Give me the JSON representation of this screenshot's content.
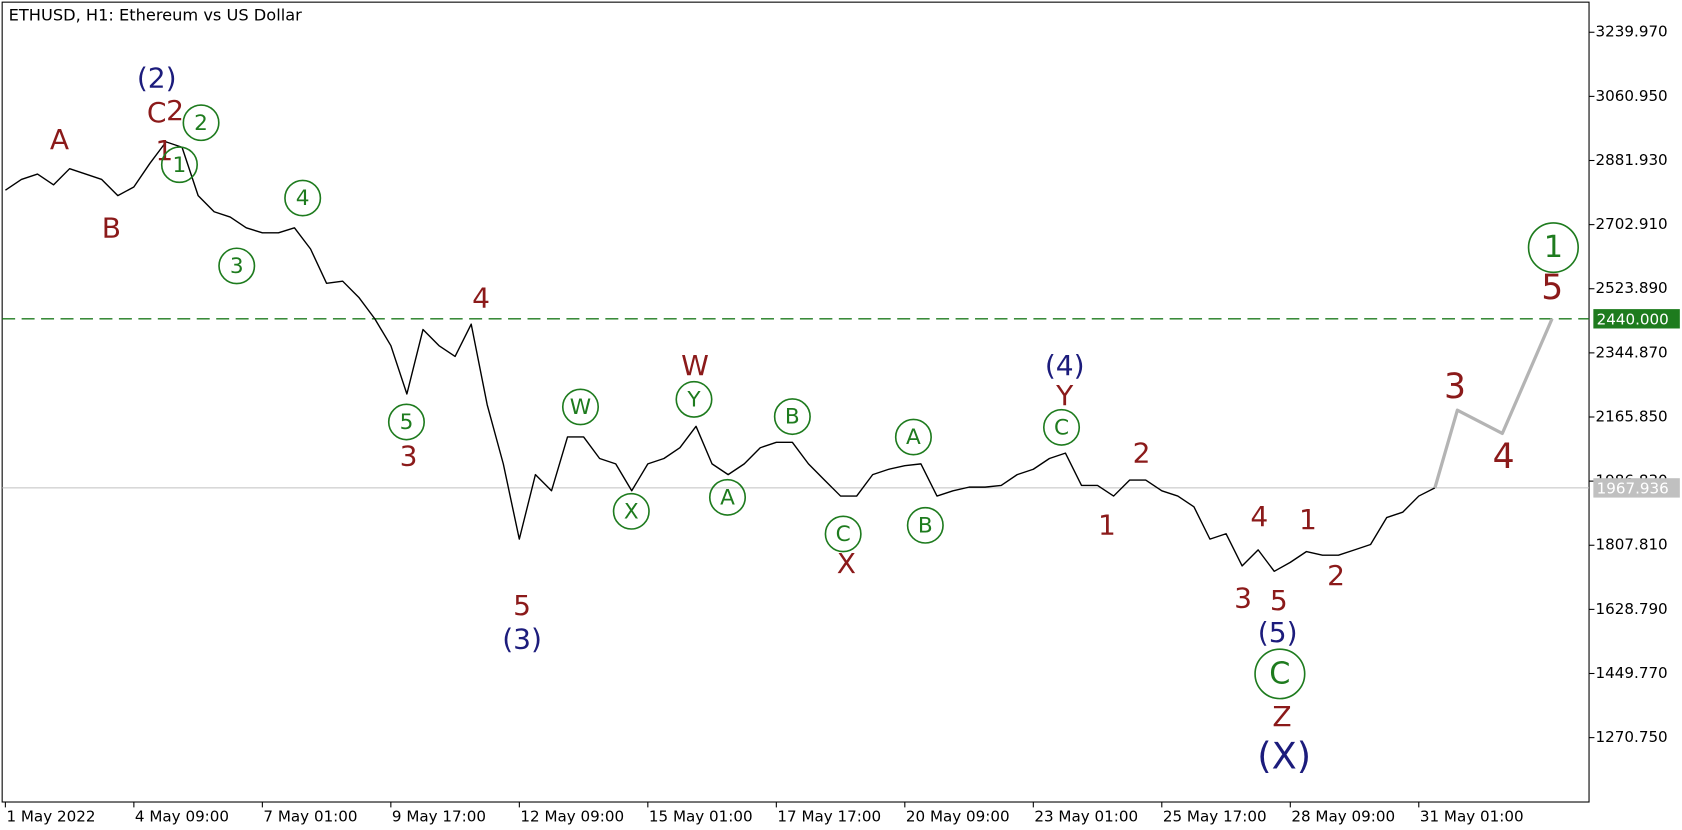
{
  "chart_data": {
    "type": "line",
    "title": "ETHUSD, H1:  Ethereum vs US Dollar",
    "series": [
      {
        "color": "#000000",
        "values": [
          2799,
          2829,
          2844,
          2814,
          2859,
          2844,
          2829,
          2784,
          2808,
          2874,
          2934,
          2919,
          2784,
          2739,
          2724,
          2694,
          2680,
          2680,
          2694,
          2635,
          2539,
          2545,
          2500,
          2440,
          2365,
          2230,
          2410,
          2365,
          2335,
          2425,
          2200,
          2035,
          1825,
          2005,
          1960,
          2110,
          2110,
          2050,
          2035,
          1960,
          2035,
          2050,
          2080,
          2140,
          2035,
          2005,
          2035,
          2080,
          2095,
          2095,
          2035,
          1990,
          1945,
          1945,
          2005,
          2020,
          2030,
          2035,
          1945,
          1960,
          1970,
          1970,
          1975,
          2005,
          2020,
          2050,
          2065,
          1975,
          1975,
          1945,
          1990,
          1990,
          1960,
          1945,
          1915,
          1825,
          1840,
          1750,
          1795,
          1735,
          1760,
          1790,
          1780,
          1780,
          1795,
          1810,
          1885,
          1900,
          1945,
          1968
        ]
      },
      {
        "color": "#b4b4b4",
        "x": [
          89,
          90.4,
          93.2,
          96.3
        ],
        "values": [
          1968,
          2185,
          2120,
          2440
        ]
      }
    ],
    "xlim": [
      -0.2,
      98.6
    ],
    "xticks": [
      {
        "value": 0,
        "label": "1 May 2022"
      },
      {
        "value": 8,
        "label": "4 May 09:00"
      },
      {
        "value": 16,
        "label": "7 May 01:00"
      },
      {
        "value": 24,
        "label": "9 May 17:00"
      },
      {
        "value": 32,
        "label": "12 May 09:00"
      },
      {
        "value": 40,
        "label": "15 May 01:00"
      },
      {
        "value": 48,
        "label": "17 May 17:00"
      },
      {
        "value": 56,
        "label": "20 May 09:00"
      },
      {
        "value": 64,
        "label": "23 May 01:00"
      },
      {
        "value": 72,
        "label": "25 May 17:00"
      },
      {
        "value": 80,
        "label": "28 May 09:00"
      },
      {
        "value": 88,
        "label": "31 May 01:00"
      }
    ],
    "ylim": [
      1091,
      3324
    ],
    "yticks": [
      {
        "value": 3239.97,
        "label": "3239.970"
      },
      {
        "value": 3060.95,
        "label": "3060.950"
      },
      {
        "value": 2881.93,
        "label": "2881.930"
      },
      {
        "value": 2702.91,
        "label": "2702.910"
      },
      {
        "value": 2523.89,
        "label": "2523.890"
      },
      {
        "value": 2344.87,
        "label": "2344.870"
      },
      {
        "value": 2165.85,
        "label": "2165.850"
      },
      {
        "value": 1986.83,
        "label": "1986.830"
      },
      {
        "value": 1807.81,
        "label": "1807.810"
      },
      {
        "value": 1628.79,
        "label": "1628.790"
      },
      {
        "value": 1449.77,
        "label": "1449.770"
      },
      {
        "value": 1270.75,
        "label": "1270.750"
      }
    ],
    "levels": [
      {
        "value": 2440,
        "label": "2440.000",
        "color": "#1e7b1e",
        "dashed": true
      },
      {
        "value": 1967.936,
        "label": "1967.936",
        "color": "#c0c0c0",
        "dashed": false
      }
    ],
    "annotations": [
      {
        "text": "A",
        "color": "#8b1a1a"
      },
      {
        "text": "B",
        "color": "#8b1a1a"
      },
      {
        "text": "(2)",
        "color": "#1c1c7c"
      },
      {
        "text": "C",
        "color": "#8b1a1a"
      },
      {
        "text": "2",
        "color": "#8b1a1a"
      },
      {
        "text": "1",
        "color": "#8b1a1a"
      },
      {
        "text": "1",
        "color": "#1e7b1e",
        "circled": true
      },
      {
        "text": "2",
        "color": "#1e7b1e",
        "circled": true
      },
      {
        "text": "4",
        "color": "#1e7b1e",
        "circled": true
      },
      {
        "text": "3",
        "color": "#1e7b1e",
        "circled": true
      },
      {
        "text": "4",
        "color": "#8b1a1a"
      },
      {
        "text": "5",
        "color": "#1e7b1e",
        "circled": true
      },
      {
        "text": "3",
        "color": "#8b1a1a"
      },
      {
        "text": "5",
        "color": "#8b1a1a"
      },
      {
        "text": "(3)",
        "color": "#1c1c7c"
      },
      {
        "text": "W",
        "color": "#1e7b1e",
        "circled": true
      },
      {
        "text": "X",
        "color": "#1e7b1e",
        "circled": true
      },
      {
        "text": "W",
        "color": "#8b1a1a"
      },
      {
        "text": "Y",
        "color": "#1e7b1e",
        "circled": true
      },
      {
        "text": "A",
        "color": "#1e7b1e",
        "circled": true
      },
      {
        "text": "B",
        "color": "#1e7b1e",
        "circled": true
      },
      {
        "text": "C",
        "color": "#1e7b1e",
        "circled": true
      },
      {
        "text": "X",
        "color": "#8b1a1a"
      },
      {
        "text": "A",
        "color": "#1e7b1e",
        "circled": true
      },
      {
        "text": "B",
        "color": "#1e7b1e",
        "circled": true
      },
      {
        "text": "(4)",
        "color": "#1c1c7c"
      },
      {
        "text": "Y",
        "color": "#8b1a1a"
      },
      {
        "text": "C",
        "color": "#1e7b1e",
        "circled": true
      },
      {
        "text": "2",
        "color": "#8b1a1a"
      },
      {
        "text": "1",
        "color": "#8b1a1a"
      },
      {
        "text": "4",
        "color": "#8b1a1a"
      },
      {
        "text": "1",
        "color": "#8b1a1a"
      },
      {
        "text": "3",
        "color": "#8b1a1a"
      },
      {
        "text": "5",
        "color": "#8b1a1a"
      },
      {
        "text": "2",
        "color": "#8b1a1a"
      },
      {
        "text": "(5)",
        "color": "#1c1c7c"
      },
      {
        "text": "C",
        "color": "#1e7b1e",
        "circled": true
      },
      {
        "text": "Z",
        "color": "#8b1a1a"
      },
      {
        "text": "(X)",
        "color": "#1c1c7c"
      },
      {
        "text": "3",
        "color": "#8b1a1a"
      },
      {
        "text": "4",
        "color": "#8b1a1a"
      },
      {
        "text": "1",
        "color": "#1e7b1e",
        "circled": true
      },
      {
        "text": "5",
        "color": "#8b1a1a"
      }
    ]
  }
}
